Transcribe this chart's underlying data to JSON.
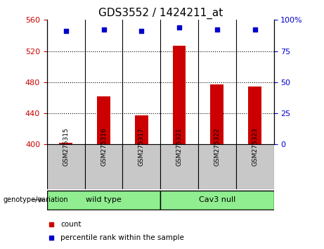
{
  "title": "GDS3552 / 1424211_at",
  "samples": [
    "GSM275315",
    "GSM275316",
    "GSM275317",
    "GSM275321",
    "GSM275322",
    "GSM275323"
  ],
  "bar_values": [
    402,
    462,
    437,
    527,
    477,
    474
  ],
  "percentile_values": [
    91,
    92,
    91,
    94,
    92,
    92
  ],
  "bar_color": "#cc0000",
  "dot_color": "#0000cc",
  "bar_base": 400,
  "ylim_left": [
    400,
    560
  ],
  "ylim_right": [
    0,
    100
  ],
  "yticks_left": [
    400,
    440,
    480,
    520,
    560
  ],
  "yticks_right": [
    0,
    25,
    50,
    75,
    100
  ],
  "ytick_labels_right": [
    "0",
    "25",
    "50",
    "75",
    "100%"
  ],
  "groups": [
    {
      "label": "wild type",
      "indices": [
        0,
        1,
        2
      ],
      "color": "#90ee90"
    },
    {
      "label": "Cav3 null",
      "indices": [
        3,
        4,
        5
      ],
      "color": "#90ee90"
    }
  ],
  "group_label": "genotype/variation",
  "legend_count_label": "count",
  "legend_percentile_label": "percentile rank within the sample",
  "background_sample": "#c8c8c8",
  "tick_label_color_left": "#cc0000",
  "tick_label_color_right": "#0000cc",
  "title_fontsize": 11,
  "tick_fontsize": 8,
  "bar_width": 0.35
}
